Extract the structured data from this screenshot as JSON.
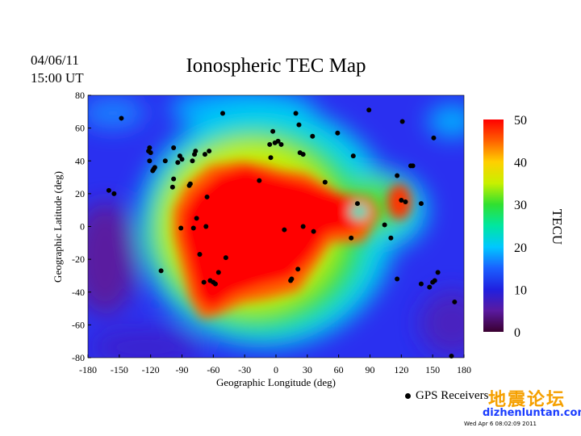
{
  "header": {
    "date": "04/06/11",
    "time": "15:00 UT",
    "title": "Ionospheric TEC Map"
  },
  "axes": {
    "xlabel": "Geographic Longitude (deg)",
    "ylabel": "Geographic Latitude (deg)",
    "xticks": [
      "-180",
      "-150",
      "-120",
      "-90",
      "-60",
      "-30",
      "0",
      "30",
      "60",
      "90",
      "120",
      "150",
      "180"
    ],
    "yticks": [
      "80",
      "60",
      "40",
      "20",
      "0",
      "-20",
      "-40",
      "-60",
      "-80"
    ],
    "xlim": [
      -180,
      180
    ],
    "ylim": [
      -80,
      80
    ]
  },
  "colorbar": {
    "label": "TECU",
    "ticks": [
      "0",
      "10",
      "20",
      "30",
      "40",
      "50"
    ],
    "range": [
      0,
      50
    ],
    "colors": [
      "#3a0030",
      "#5a1aa0",
      "#2020e0",
      "#1a60ff",
      "#00c8ff",
      "#00e6a0",
      "#30e030",
      "#c8f000",
      "#ffd000",
      "#ff6000",
      "#ff0000"
    ]
  },
  "legend": {
    "label": "GPS Receivers"
  },
  "watermark": {
    "cn": "地震论坛",
    "url": "dizhenluntan.com"
  },
  "stamp": "Wed Apr  6 08:02:09 2011",
  "receivers": [
    [
      -148,
      66
    ],
    [
      -160,
      22
    ],
    [
      -155,
      20
    ],
    [
      -121,
      48
    ],
    [
      -122,
      46
    ],
    [
      -120,
      45
    ],
    [
      -121,
      40
    ],
    [
      -117,
      35
    ],
    [
      -118,
      34
    ],
    [
      -116,
      36
    ],
    [
      -106,
      40
    ],
    [
      -98,
      48
    ],
    [
      -94,
      39
    ],
    [
      -90,
      41
    ],
    [
      -92,
      43
    ],
    [
      -98,
      29
    ],
    [
      -99,
      24
    ],
    [
      -91,
      -1
    ],
    [
      -80,
      40
    ],
    [
      -78,
      44
    ],
    [
      -77,
      46
    ],
    [
      -68,
      44
    ],
    [
      -64,
      46
    ],
    [
      -82,
      26
    ],
    [
      -83,
      25
    ],
    [
      -76,
      5
    ],
    [
      -79,
      -1
    ],
    [
      -66,
      18
    ],
    [
      -73,
      -17
    ],
    [
      -67,
      0
    ],
    [
      -110,
      -27
    ],
    [
      -69,
      -34
    ],
    [
      -63,
      -33
    ],
    [
      -60,
      -34
    ],
    [
      -58,
      -35
    ],
    [
      -55,
      -28
    ],
    [
      -48,
      -19
    ],
    [
      -51,
      69
    ],
    [
      -16,
      28
    ],
    [
      -5,
      42
    ],
    [
      -3,
      58
    ],
    [
      -6,
      50
    ],
    [
      -1,
      51
    ],
    [
      2,
      52
    ],
    [
      5,
      50
    ],
    [
      19,
      69
    ],
    [
      22,
      62
    ],
    [
      35,
      55
    ],
    [
      26,
      44
    ],
    [
      23,
      45
    ],
    [
      59,
      57
    ],
    [
      74,
      43
    ],
    [
      89,
      71
    ],
    [
      8,
      -2
    ],
    [
      26,
      0
    ],
    [
      36,
      -3
    ],
    [
      47,
      27
    ],
    [
      72,
      -7
    ],
    [
      21,
      -26
    ],
    [
      15,
      -32
    ],
    [
      14,
      -33
    ],
    [
      78,
      14
    ],
    [
      104,
      1
    ],
    [
      110,
      -7
    ],
    [
      116,
      31
    ],
    [
      120,
      16
    ],
    [
      124,
      15
    ],
    [
      121,
      64
    ],
    [
      129,
      37
    ],
    [
      131,
      37
    ],
    [
      139,
      14
    ],
    [
      151,
      54
    ],
    [
      116,
      -32
    ],
    [
      139,
      -35
    ],
    [
      147,
      -37
    ],
    [
      150,
      -34
    ],
    [
      152,
      -33
    ],
    [
      155,
      -28
    ],
    [
      171,
      -46
    ],
    [
      168,
      -79
    ]
  ]
}
